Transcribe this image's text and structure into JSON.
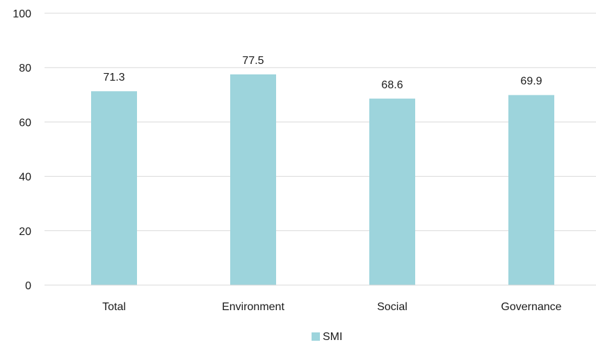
{
  "chart_data": {
    "type": "bar",
    "categories": [
      "Total",
      "Environment",
      "Social",
      "Governance"
    ],
    "series": [
      {
        "name": "SMI",
        "values": [
          71.3,
          77.5,
          68.6,
          69.9
        ],
        "labels": [
          "71.3",
          "77.5",
          "68.6",
          "69.9"
        ],
        "color": "#9dd4dc"
      }
    ],
    "ylim": [
      0,
      100
    ],
    "yticks": [
      "0",
      "20",
      "40",
      "60",
      "80",
      "100"
    ],
    "ytick_values": [
      0,
      20,
      40,
      60,
      80,
      100
    ],
    "grid": true,
    "legend_position": "bottom-center",
    "gridline_color": "#d9d9d9"
  }
}
